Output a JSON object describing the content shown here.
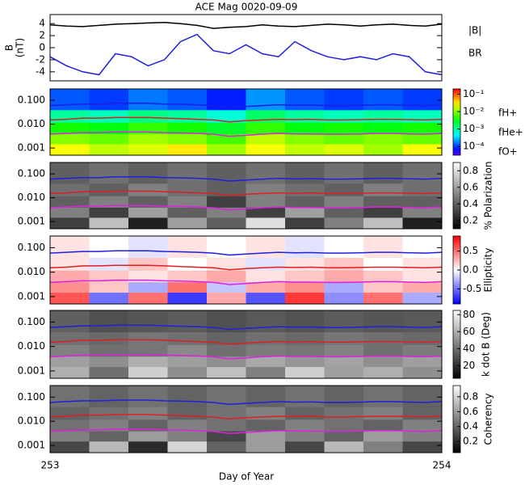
{
  "chart_data": [
    {
      "type": "line",
      "title": "ACE Mag 0020-09-09",
      "ylabel": [
        "B",
        "(nT)"
      ],
      "x": [
        253,
        253.042,
        253.083,
        253.125,
        253.167,
        253.208,
        253.25,
        253.292,
        253.333,
        253.375,
        253.417,
        253.458,
        253.5,
        253.542,
        253.583,
        253.625,
        253.667,
        253.708,
        253.75,
        253.792,
        253.833,
        253.875,
        253.917,
        253.958,
        254
      ],
      "xlim": [
        253,
        254
      ],
      "ylim": [
        -5.5,
        5.5
      ],
      "yticks": [
        -4,
        -2,
        0,
        2,
        4
      ],
      "series": [
        {
          "name": "|B|",
          "color": "#000000",
          "values": [
            3.8,
            3.6,
            3.5,
            3.7,
            3.9,
            4.0,
            4.1,
            4.2,
            4.0,
            3.7,
            3.2,
            3.4,
            3.5,
            3.8,
            3.6,
            3.5,
            3.7,
            3.9,
            3.8,
            3.6,
            3.8,
            3.9,
            3.7,
            3.6,
            3.9
          ]
        },
        {
          "name": "BR",
          "color": "#1f1fe0",
          "values": [
            -1.5,
            -3,
            -4,
            -4.5,
            -1,
            -1.5,
            -3,
            -2,
            1,
            2.2,
            -0.5,
            -1,
            0.5,
            -1,
            -1.5,
            1,
            -0.5,
            -1.5,
            -2,
            -1.5,
            -2,
            -1,
            -1.5,
            -4,
            -4.5
          ]
        }
      ]
    },
    {
      "type": "heatmap",
      "colormap": "rainbow",
      "yscale": "log",
      "xlim": [
        253,
        254
      ],
      "ylim": [
        0.0005,
        0.3
      ],
      "yticks": [
        {
          "value": 0.001,
          "label": "0.001"
        },
        {
          "value": 0.01,
          "label": "0.010"
        },
        {
          "value": 0.1,
          "label": "0.100"
        }
      ],
      "zlim": [
        -4.5,
        -0.7
      ],
      "zticks": [
        {
          "value": -4,
          "label": "10⁻⁴"
        },
        {
          "value": -3,
          "label": "10⁻³"
        },
        {
          "value": -2,
          "label": "10⁻²"
        },
        {
          "value": -1,
          "label": "10⁻¹"
        }
      ],
      "x_edges": [
        253,
        253.1,
        253.2,
        253.3,
        253.4,
        253.5,
        253.6,
        253.7,
        253.8,
        253.9,
        254
      ],
      "y_edges": [
        0.0005,
        0.0015,
        0.004,
        0.012,
        0.04,
        0.3
      ],
      "z": [
        [
          -1.6,
          -1.8,
          -1.7,
          -1.5,
          -1.9,
          -1.6,
          -1.8,
          -1.7,
          -1.9,
          -1.6
        ],
        [
          -2.0,
          -2.1,
          -1.9,
          -2.0,
          -2.2,
          -1.8,
          -2.0,
          -2.1,
          -2.0,
          -2.1
        ],
        [
          -2.4,
          -2.5,
          -2.3,
          -2.4,
          -2.6,
          -2.3,
          -2.5,
          -2.4,
          -2.5,
          -2.4
        ],
        [
          -3.0,
          -3.1,
          -2.9,
          -3.0,
          -3.2,
          -2.8,
          -3.0,
          -3.1,
          -3.0,
          -3.1
        ],
        [
          -3.9,
          -4.0,
          -3.8,
          -3.9,
          -4.1,
          -3.7,
          -3.9,
          -4.0,
          -3.9,
          -4.0
        ]
      ],
      "series": [
        {
          "name": "fH+",
          "color": "#1f1fe0",
          "values": [
            0.06,
            0.065,
            0.07,
            0.07,
            0.075,
            0.075,
            0.075,
            0.07,
            0.068,
            0.065,
            0.06,
            0.05,
            0.055,
            0.06,
            0.065,
            0.062,
            0.063,
            0.06,
            0.06,
            0.062,
            0.065,
            0.065,
            0.062,
            0.06,
            0.065
          ]
        },
        {
          "name": "fHe+",
          "color": "#e01f1f",
          "values": [
            0.015,
            0.016,
            0.018,
            0.018,
            0.019,
            0.019,
            0.019,
            0.018,
            0.017,
            0.016,
            0.015,
            0.0125,
            0.014,
            0.015,
            0.016,
            0.0155,
            0.016,
            0.015,
            0.015,
            0.0155,
            0.016,
            0.016,
            0.0155,
            0.015,
            0.016
          ]
        },
        {
          "name": "fO+",
          "color": "#e01fe0",
          "values": [
            0.0038,
            0.0041,
            0.0044,
            0.0044,
            0.0047,
            0.0047,
            0.0047,
            0.0044,
            0.0043,
            0.0041,
            0.0038,
            0.0031,
            0.0034,
            0.0038,
            0.0041,
            0.0039,
            0.0039,
            0.0038,
            0.0038,
            0.0039,
            0.0041,
            0.0041,
            0.0039,
            0.0038,
            0.0041
          ]
        }
      ]
    },
    {
      "type": "heatmap",
      "colormap": "gray",
      "yscale": "log",
      "xlim": [
        253,
        254
      ],
      "ylim": [
        0.0005,
        0.3
      ],
      "yticks": [
        {
          "value": 0.001,
          "label": "0.001"
        },
        {
          "value": 0.01,
          "label": "0.010"
        },
        {
          "value": 0.1,
          "label": "0.100"
        }
      ],
      "colorbar_label": "% Polarization",
      "zlim": [
        0.1,
        0.9
      ],
      "zticks": [
        0.2,
        0.4,
        0.6,
        0.8
      ],
      "x_edges": [
        253,
        253.1,
        253.2,
        253.3,
        253.4,
        253.5,
        253.6,
        253.7,
        253.8,
        253.9,
        254
      ],
      "y_edges": [
        0.0005,
        0.0015,
        0.004,
        0.012,
        0.04,
        0.3
      ],
      "z": [
        [
          0.3,
          0.7,
          0.2,
          0.6,
          0.4,
          0.8,
          0.3,
          0.5,
          0.7,
          0.2
        ],
        [
          0.5,
          0.3,
          0.6,
          0.4,
          0.5,
          0.3,
          0.6,
          0.4,
          0.3,
          0.5
        ],
        [
          0.4,
          0.5,
          0.4,
          0.5,
          0.3,
          0.5,
          0.4,
          0.5,
          0.4,
          0.4
        ],
        [
          0.45,
          0.4,
          0.5,
          0.45,
          0.4,
          0.5,
          0.45,
          0.4,
          0.5,
          0.45
        ],
        [
          0.4,
          0.45,
          0.4,
          0.45,
          0.4,
          0.45,
          0.4,
          0.45,
          0.4,
          0.45
        ]
      ]
    },
    {
      "type": "heatmap",
      "colormap": "bwr",
      "yscale": "log",
      "xlim": [
        253,
        254
      ],
      "ylim": [
        0.0005,
        0.3
      ],
      "yticks": [
        {
          "value": 0.001,
          "label": "0.001"
        },
        {
          "value": 0.01,
          "label": "0.010"
        },
        {
          "value": 0.1,
          "label": "0.100"
        }
      ],
      "colorbar_label": "Ellipticity",
      "zlim": [
        -0.9,
        0.9
      ],
      "zticks": [
        {
          "value": -0.5,
          "label": "-0.5"
        },
        {
          "value": 0,
          "label": "0.0"
        },
        {
          "value": 0.5,
          "label": "0.5"
        }
      ],
      "x_edges": [
        253,
        253.1,
        253.2,
        253.3,
        253.4,
        253.5,
        253.6,
        253.7,
        253.8,
        253.9,
        254
      ],
      "y_edges": [
        0.0005,
        0.0015,
        0.004,
        0.012,
        0.04,
        0.3
      ],
      "z": [
        [
          0.6,
          -0.5,
          0.5,
          -0.7,
          0.3,
          -0.6,
          0.7,
          -0.4,
          0.5,
          -0.3
        ],
        [
          0.4,
          0.2,
          -0.3,
          0.5,
          -0.2,
          0.3,
          0.4,
          -0.3,
          0.2,
          0.3
        ],
        [
          0.3,
          0.2,
          0.1,
          0.2,
          0.3,
          0.1,
          0.2,
          0.3,
          0.2,
          0.1
        ],
        [
          0.1,
          -0.1,
          0.2,
          0.0,
          0.1,
          -0.1,
          0.1,
          0.2,
          0.0,
          0.1
        ],
        [
          0.1,
          0.0,
          -0.1,
          0.1,
          0.0,
          0.1,
          -0.1,
          0.0,
          0.1,
          0.0
        ]
      ]
    },
    {
      "type": "heatmap",
      "colormap": "gray",
      "yscale": "log",
      "xlim": [
        253,
        254
      ],
      "ylim": [
        0.0005,
        0.3
      ],
      "yticks": [
        {
          "value": 0.001,
          "label": "0.001"
        },
        {
          "value": 0.01,
          "label": "0.010"
        },
        {
          "value": 0.1,
          "label": "0.100"
        }
      ],
      "colorbar_label": "k dot B (Deg)",
      "zlim": [
        5,
        85
      ],
      "zticks": [
        20,
        40,
        60,
        80
      ],
      "x_edges": [
        253,
        253.1,
        253.2,
        253.3,
        253.4,
        253.5,
        253.6,
        253.7,
        253.8,
        253.9,
        254
      ],
      "y_edges": [
        0.0005,
        0.0015,
        0.004,
        0.012,
        0.04,
        0.3
      ],
      "z": [
        [
          60,
          40,
          70,
          50,
          65,
          45,
          70,
          55,
          60,
          50
        ],
        [
          55,
          50,
          60,
          55,
          50,
          58,
          52,
          56,
          50,
          55
        ],
        [
          45,
          40,
          42,
          48,
          40,
          44,
          42,
          46,
          40,
          44
        ],
        [
          40,
          38,
          42,
          40,
          36,
          40,
          38,
          42,
          40,
          38
        ],
        [
          35,
          30,
          32,
          34,
          30,
          33,
          31,
          34,
          32,
          33
        ]
      ]
    },
    {
      "type": "heatmap",
      "colormap": "gray",
      "yscale": "log",
      "xlim": [
        253,
        254
      ],
      "ylim": [
        0.0005,
        0.3
      ],
      "yticks": [
        {
          "value": 0.001,
          "label": "0.001"
        },
        {
          "value": 0.01,
          "label": "0.010"
        },
        {
          "value": 0.1,
          "label": "0.100"
        }
      ],
      "colorbar_label": "Coherency",
      "zlim": [
        0.05,
        0.95
      ],
      "zticks": [
        0.2,
        0.4,
        0.6,
        0.8
      ],
      "xlabel": "Day of Year",
      "xticks": [
        253,
        254
      ],
      "x_edges": [
        253,
        253.1,
        253.2,
        253.3,
        253.4,
        253.5,
        253.6,
        253.7,
        253.8,
        253.9,
        254
      ],
      "y_edges": [
        0.0005,
        0.0015,
        0.004,
        0.012,
        0.04,
        0.3
      ],
      "z": [
        [
          0.3,
          0.7,
          0.2,
          0.8,
          0.4,
          0.6,
          0.3,
          0.7,
          0.5,
          0.3
        ],
        [
          0.5,
          0.4,
          0.6,
          0.5,
          0.3,
          0.6,
          0.5,
          0.4,
          0.6,
          0.5
        ],
        [
          0.45,
          0.5,
          0.4,
          0.5,
          0.45,
          0.4,
          0.5,
          0.45,
          0.4,
          0.5
        ],
        [
          0.4,
          0.45,
          0.5,
          0.4,
          0.45,
          0.5,
          0.4,
          0.45,
          0.5,
          0.4
        ],
        [
          0.45,
          0.4,
          0.45,
          0.4,
          0.45,
          0.4,
          0.45,
          0.4,
          0.45,
          0.4
        ]
      ]
    }
  ]
}
